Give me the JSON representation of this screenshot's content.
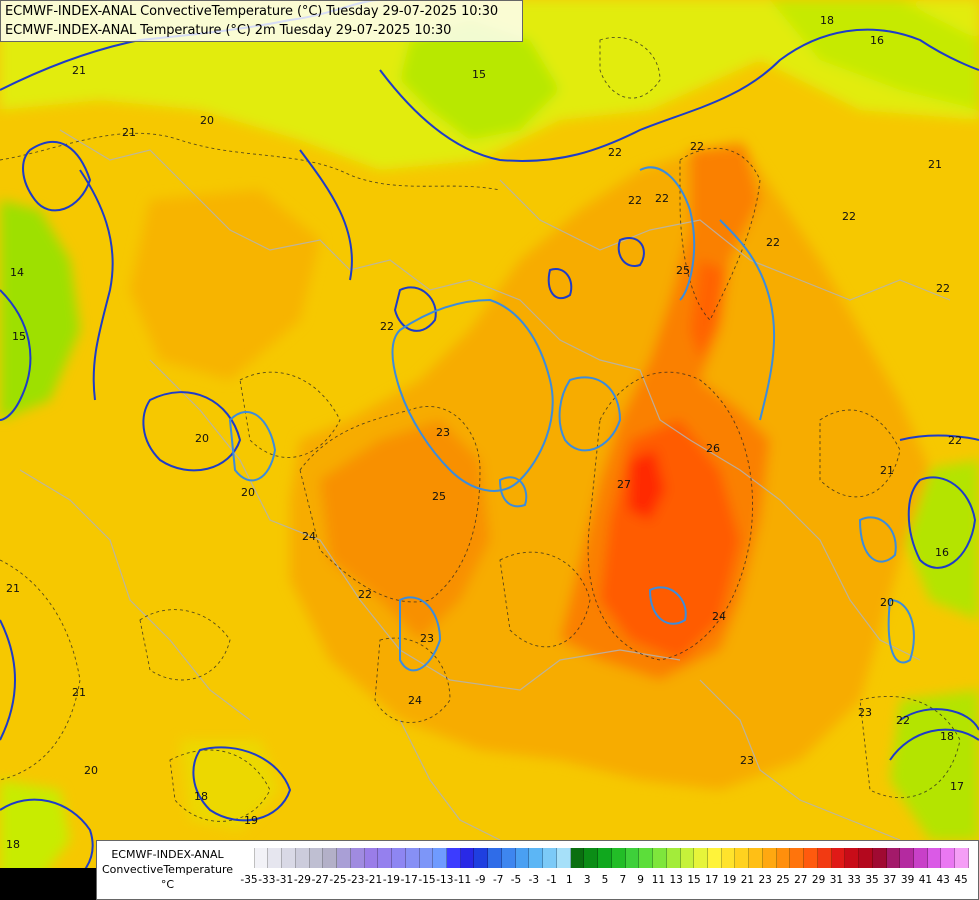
{
  "title": {
    "line1": "ECMWF-INDEX-ANAL ConvectiveTemperature (°C) Tuesday 29-07-2025 10:30",
    "line2": "ECMWF-INDEX-ANAL Temperature (°C) 2m Tuesday 29-07-2025 10:30"
  },
  "legend": {
    "line1": "ECMWF-INDEX-ANAL",
    "line2": "ConvectiveTemperature",
    "unit": "°C",
    "ticks": [
      "-35",
      "-33",
      "-31",
      "-29",
      "-27",
      "-25",
      "-23",
      "-21",
      "-19",
      "-17",
      "-15",
      "-13",
      "-11",
      "-9",
      "-7",
      "-5",
      "-3",
      "-1",
      "1",
      "3",
      "5",
      "7",
      "9",
      "11",
      "13",
      "15",
      "17",
      "19",
      "21",
      "23",
      "25",
      "27",
      "29",
      "31",
      "33",
      "35",
      "37",
      "39",
      "41",
      "43",
      "45"
    ],
    "colors": [
      "#ffffff",
      "#f2f2f7",
      "#e6e6ef",
      "#d9d9e6",
      "#ccccdc",
      "#bfbfd2",
      "#b3b0c8",
      "#a99fd6",
      "#a08be0",
      "#9a7de8",
      "#9580ee",
      "#8e86f2",
      "#8790f5",
      "#7d96f8",
      "#6f9bff",
      "#3c3cff",
      "#2929e6",
      "#1f3fe0",
      "#2f6ce8",
      "#3e86ef",
      "#4aa0f2",
      "#5cb6f5",
      "#7ccaf7",
      "#a6e0f9",
      "#0a6f10",
      "#0b8d16",
      "#10a81e",
      "#22bd27",
      "#3ed03a",
      "#5cde3a",
      "#7ee63c",
      "#a3ec3a",
      "#c6f23a",
      "#e6f43a",
      "#fff33a",
      "#ffe32c",
      "#ffd21f",
      "#ffbf15",
      "#ffa810",
      "#ff8f0c",
      "#ff740c",
      "#ff5a0e",
      "#f23a12",
      "#e01a17",
      "#c80c18",
      "#b4081e",
      "#a00a32",
      "#a31a6a",
      "#b42aa0",
      "#c840c8",
      "#da5ae6",
      "#ea78f2",
      "#f59ef6"
    ],
    "sample_values": [
      {
        "value": 25,
        "color": "#ffa810"
      },
      {
        "value": 27,
        "color": "#ff8f0c"
      }
    ]
  },
  "contour_labels": {
    "iso_20": "20",
    "iso_21": "21",
    "iso_22": "22",
    "iso_23": "23",
    "iso_24": "24",
    "iso_25": "25",
    "iso_26": "26",
    "iso_27": "27",
    "iso_18": "18",
    "iso_17": "17",
    "iso_16": "16",
    "iso_15": "15",
    "iso_19": "19",
    "iso_14": "14"
  },
  "colors": {
    "background": "#f6c800",
    "cool_field": "#c8e600",
    "warm_field": "#f7a800",
    "hot_field": "#ff6a00",
    "core": "#ff1c00",
    "isotherm_blue": "#1e3cc8",
    "isotherm_light_blue": "#3c8cdc",
    "border_grey": "#b4b4b4"
  }
}
